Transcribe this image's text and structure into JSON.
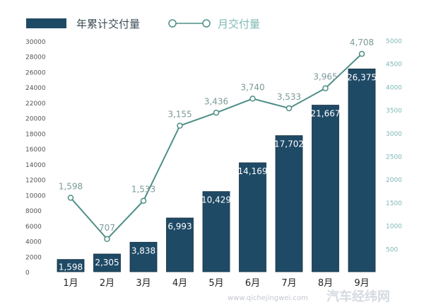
{
  "legend": {
    "bar_label": "年累计交付量",
    "line_label": "月交付量"
  },
  "watermark": {
    "name": "汽车经纬网",
    "url": "www.qichejingwei.com"
  },
  "chart_data": {
    "type": "bar+line",
    "categories": [
      "1月",
      "2月",
      "3月",
      "4月",
      "5月",
      "6月",
      "7月",
      "8月",
      "9月"
    ],
    "series": [
      {
        "name": "年累计交付量",
        "type": "bar",
        "axis": "left",
        "values": [
          1598,
          2305,
          3838,
          6993,
          10429,
          14169,
          17702,
          21667,
          26375
        ],
        "labels": [
          "1,598",
          "2,305",
          "3,838",
          "6,993",
          "10,429",
          "14,169",
          "17,702",
          "21,667",
          "26,375"
        ],
        "color": "#1f4a66"
      },
      {
        "name": "月交付量",
        "type": "line",
        "axis": "right",
        "values": [
          1598,
          707,
          1533,
          3155,
          3436,
          3740,
          3533,
          3965,
          4708
        ],
        "labels": [
          "1,598",
          "707",
          "1,533",
          "3,155",
          "3,436",
          "3,740",
          "3,533",
          "3,965",
          "4,708"
        ],
        "color": "#4e8f86"
      }
    ],
    "y_left": {
      "range": [
        0,
        30000
      ],
      "ticks": [
        "0",
        "2000",
        "4000",
        "6000",
        "8000",
        "10000",
        "12000",
        "14000",
        "16000",
        "18000",
        "20000",
        "22000",
        "24000",
        "26000",
        "28000",
        "30000"
      ]
    },
    "y_right": {
      "range": [
        0,
        5000
      ],
      "ticks": [
        "500",
        "1000",
        "1500",
        "2000",
        "2500",
        "3000",
        "3500",
        "4000",
        "4500",
        "5000"
      ]
    },
    "grid": false,
    "legend_position": "top-left"
  }
}
